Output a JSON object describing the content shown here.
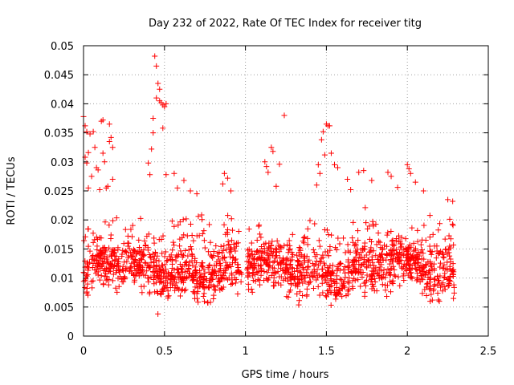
{
  "chart_data": {
    "type": "scatter",
    "title": "Day 232 of 2022, Rate Of TEC Index for receiver titg",
    "xlabel": "GPS time / hours",
    "ylabel": "ROTI / TECUs",
    "xlim": [
      0,
      2.5
    ],
    "ylim": [
      0,
      0.05
    ],
    "x_ticks": [
      "0",
      "0.5",
      "1",
      "1.5",
      "2",
      "2.5"
    ],
    "y_ticks": [
      "0",
      "0.005",
      "0.01",
      "0.015",
      "0.02",
      "0.025",
      "0.03",
      "0.035",
      "0.04",
      "0.045",
      "0.05"
    ],
    "grid": true,
    "legend": "none",
    "marker": "+",
    "series": [
      {
        "color": "#ff0000",
        "points": [
          [
            0.0,
            0.0378
          ],
          [
            0.01,
            0.0362
          ],
          [
            0.01,
            0.0308
          ],
          [
            0.02,
            0.0352
          ],
          [
            0.02,
            0.0298
          ],
          [
            0.03,
            0.0316
          ],
          [
            0.03,
            0.0255
          ],
          [
            0.04,
            0.0348
          ],
          [
            0.05,
            0.0275
          ],
          [
            0.06,
            0.0352
          ],
          [
            0.07,
            0.0325
          ],
          [
            0.08,
            0.029
          ],
          [
            0.09,
            0.0286
          ],
          [
            0.1,
            0.0252
          ],
          [
            0.11,
            0.037
          ],
          [
            0.12,
            0.0372
          ],
          [
            0.12,
            0.0315
          ],
          [
            0.13,
            0.03
          ],
          [
            0.14,
            0.0255
          ],
          [
            0.15,
            0.0258
          ],
          [
            0.16,
            0.0365
          ],
          [
            0.16,
            0.0335
          ],
          [
            0.17,
            0.0342
          ],
          [
            0.18,
            0.0325
          ],
          [
            0.18,
            0.027
          ],
          [
            0.4,
            0.0298
          ],
          [
            0.41,
            0.0278
          ],
          [
            0.42,
            0.0322
          ],
          [
            0.43,
            0.035
          ],
          [
            0.43,
            0.0375
          ],
          [
            0.44,
            0.0482
          ],
          [
            0.45,
            0.041
          ],
          [
            0.45,
            0.0465
          ],
          [
            0.46,
            0.0435
          ],
          [
            0.47,
            0.0425
          ],
          [
            0.47,
            0.0405
          ],
          [
            0.48,
            0.0402
          ],
          [
            0.49,
            0.0398
          ],
          [
            0.49,
            0.0358
          ],
          [
            0.5,
            0.0395
          ],
          [
            0.51,
            0.04
          ],
          [
            0.51,
            0.0278
          ],
          [
            0.56,
            0.028
          ],
          [
            0.58,
            0.0255
          ],
          [
            0.62,
            0.0268
          ],
          [
            0.66,
            0.025
          ],
          [
            0.7,
            0.0245
          ],
          [
            0.86,
            0.0262
          ],
          [
            0.87,
            0.028
          ],
          [
            0.89,
            0.0272
          ],
          [
            0.91,
            0.025
          ],
          [
            1.12,
            0.03
          ],
          [
            1.13,
            0.0292
          ],
          [
            1.14,
            0.0282
          ],
          [
            1.16,
            0.0325
          ],
          [
            1.17,
            0.0318
          ],
          [
            1.19,
            0.0258
          ],
          [
            1.21,
            0.0296
          ],
          [
            1.24,
            0.038
          ],
          [
            1.44,
            0.026
          ],
          [
            1.45,
            0.0295
          ],
          [
            1.46,
            0.028
          ],
          [
            1.47,
            0.0338
          ],
          [
            1.48,
            0.0352
          ],
          [
            1.49,
            0.0312
          ],
          [
            1.5,
            0.0365
          ],
          [
            1.51,
            0.0362
          ],
          [
            1.52,
            0.0362
          ],
          [
            1.53,
            0.0315
          ],
          [
            1.55,
            0.0295
          ],
          [
            1.57,
            0.029
          ],
          [
            1.63,
            0.027
          ],
          [
            1.65,
            0.0252
          ],
          [
            1.7,
            0.0282
          ],
          [
            1.73,
            0.0285
          ],
          [
            1.78,
            0.0268
          ],
          [
            1.88,
            0.0282
          ],
          [
            1.9,
            0.0275
          ],
          [
            1.94,
            0.0256
          ],
          [
            2.0,
            0.0295
          ],
          [
            2.01,
            0.0288
          ],
          [
            2.02,
            0.028
          ],
          [
            2.05,
            0.0265
          ],
          [
            2.1,
            0.025
          ],
          [
            2.25,
            0.0235
          ],
          [
            2.28,
            0.0232
          ]
        ]
      }
    ],
    "band": {
      "description_points_generated": true,
      "x_range": [
        0.0,
        2.29
      ],
      "n": 1700,
      "seed": 232,
      "gaps": [
        [
          0.98,
          1.005
        ]
      ]
    }
  }
}
